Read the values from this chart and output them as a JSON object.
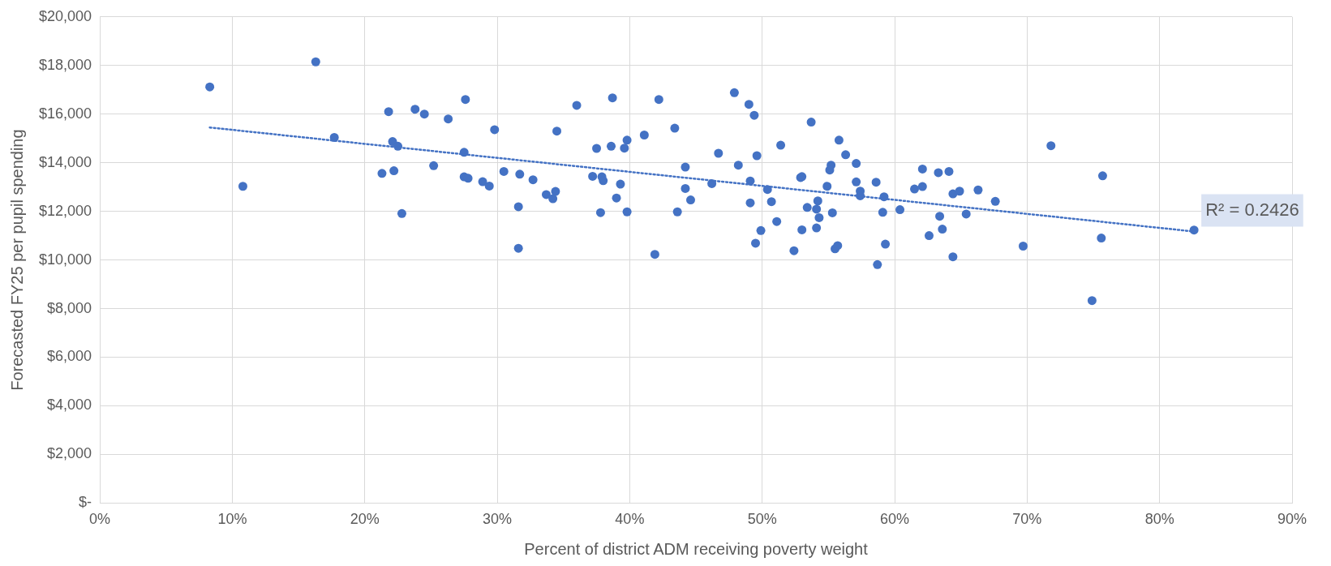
{
  "chart_data": {
    "type": "scatter",
    "xlabel": "Percent of district ADM receiving poverty weight",
    "ylabel": "Forecasted FY25 per pupil spending",
    "xlim": [
      0,
      90
    ],
    "xticks": [
      {
        "value": 0,
        "label": "0%"
      },
      {
        "value": 10,
        "label": "10%"
      },
      {
        "value": 20,
        "label": "20%"
      },
      {
        "value": 30,
        "label": "30%"
      },
      {
        "value": 40,
        "label": "40%"
      },
      {
        "value": 50,
        "label": "50%"
      },
      {
        "value": 60,
        "label": "60%"
      },
      {
        "value": 70,
        "label": "70%"
      },
      {
        "value": 80,
        "label": "80%"
      },
      {
        "value": 90,
        "label": "90%"
      }
    ],
    "ylim": [
      0,
      20000
    ],
    "yticks": [
      {
        "value": 0,
        "label": "$-"
      },
      {
        "value": 2000,
        "label": "$2,000"
      },
      {
        "value": 4000,
        "label": "$4,000"
      },
      {
        "value": 6000,
        "label": "$6,000"
      },
      {
        "value": 8000,
        "label": "$8,000"
      },
      {
        "value": 10000,
        "label": "$10,000"
      },
      {
        "value": 12000,
        "label": "$12,000"
      },
      {
        "value": 14000,
        "label": "$14,000"
      },
      {
        "value": 16000,
        "label": "$16,000"
      },
      {
        "value": 18000,
        "label": "$18,000"
      },
      {
        "value": 20000,
        "label": "$20,000"
      }
    ],
    "grid": true,
    "marker": "circle",
    "series": [
      {
        "color": "#4472c4",
        "x": [
          8.3,
          16.3,
          21.8,
          23.8,
          24.5,
          26.3,
          27.6,
          29.8,
          34.5,
          36.0,
          38.7,
          39.8,
          41.1,
          42.2,
          43.4,
          47.9,
          49.0,
          49.4,
          53.7,
          55.8,
          17.7,
          10.8,
          22.1,
          22.5,
          27.5,
          25.2,
          21.3,
          22.2,
          27.5,
          27.8,
          22.8,
          37.5,
          38.6,
          39.6,
          46.7,
          49.6,
          44.2,
          48.2,
          28.9,
          29.4,
          30.5,
          31.7,
          32.7,
          33.7,
          34.4,
          34.2,
          31.6,
          31.6,
          37.2,
          37.9,
          38.0,
          39.3,
          39.0,
          37.8,
          39.8,
          41.9,
          44.2,
          44.6,
          43.6,
          46.2,
          49.1,
          49.1,
          50.4,
          49.9,
          49.5,
          51.4,
          56.3,
          57.1,
          55.2,
          55.1,
          52.9,
          53.0,
          54.9,
          57.1,
          58.6,
          57.4,
          57.4,
          59.2,
          50.7,
          51.1,
          53.4,
          54.2,
          54.1,
          54.3,
          55.3,
          53.0,
          54.1,
          52.4,
          55.5,
          55.7,
          59.1,
          59.3,
          58.7,
          60.4,
          61.5,
          62.1,
          62.1,
          63.3,
          64.1,
          64.4,
          64.9,
          66.3,
          67.6,
          63.4,
          65.4,
          63.6,
          62.6,
          64.4,
          69.7,
          71.8,
          75.7,
          75.6,
          74.9,
          82.6
        ],
        "values": [
          17120,
          18150,
          16100,
          16200,
          16000,
          15800,
          16600,
          15360,
          15300,
          16360,
          16670,
          14930,
          15140,
          16600,
          15420,
          16880,
          16400,
          15950,
          15670,
          14930,
          15040,
          13030,
          14870,
          14680,
          14430,
          13880,
          13560,
          13670,
          13420,
          13360,
          11910,
          14590,
          14680,
          14600,
          14390,
          14290,
          13820,
          13900,
          13220,
          13040,
          13640,
          13530,
          13300,
          12690,
          12820,
          12520,
          12190,
          10480,
          13440,
          13420,
          13260,
          13120,
          12550,
          11950,
          11980,
          10230,
          12940,
          12470,
          11980,
          13140,
          13250,
          12350,
          12900,
          11210,
          10690,
          14720,
          14330,
          13970,
          13900,
          13700,
          13390,
          13430,
          13030,
          13210,
          13200,
          12830,
          12640,
          12600,
          12400,
          11580,
          12160,
          12430,
          12090,
          11740,
          11940,
          11240,
          11320,
          10380,
          10460,
          10590,
          11960,
          10650,
          9810,
          12070,
          12920,
          13020,
          13740,
          13590,
          13640,
          12720,
          12830,
          12880,
          12410,
          11800,
          11890,
          11270,
          11000,
          10130,
          10570,
          14700,
          13460,
          10900,
          8330,
          11230
        ]
      },
      {
        "type": "line",
        "color": "#4472c4",
        "line_style": "dotted",
        "marker": "none",
        "x": [
          8.3,
          82.6
        ],
        "values": [
          15450,
          11170
        ]
      }
    ],
    "annotations": [
      {
        "text": "R² = 0.2426",
        "x": 82.6,
        "y": 11170
      }
    ]
  }
}
